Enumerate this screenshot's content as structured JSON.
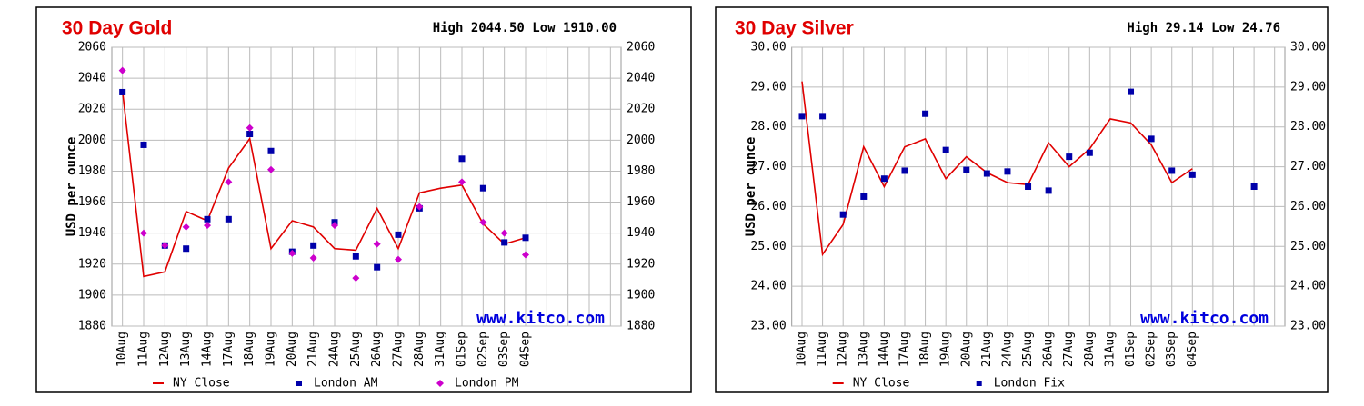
{
  "chart_data": [
    {
      "type": "line",
      "title": "30 Day Gold",
      "subtitle": "High 2044.50 Low 1910.00",
      "y_label": "USD per ounce",
      "watermark": "www.kitco.com",
      "categories": [
        "10Aug",
        "11Aug",
        "12Aug",
        "13Aug",
        "14Aug",
        "17Aug",
        "18Aug",
        "19Aug",
        "20Aug",
        "21Aug",
        "24Aug",
        "25Aug",
        "26Aug",
        "27Aug",
        "28Aug",
        "31Aug",
        "01Sep",
        "02Sep",
        "03Sep",
        "04Sep",
        null,
        null,
        null,
        null
      ],
      "series": [
        {
          "name": "NY Close",
          "color": "#e00000",
          "marker": "line",
          "values": [
            2032,
            1912,
            1915,
            1954,
            1948,
            1982,
            2001,
            1930,
            1948,
            1944,
            1930,
            1929,
            1956,
            1930,
            1966,
            1969,
            1971,
            1946,
            1933,
            1937,
            null,
            null,
            null,
            null
          ]
        },
        {
          "name": "London AM",
          "color": "#0000aa",
          "marker": "square",
          "values": [
            2031,
            1997,
            1932,
            1930,
            1949,
            1949,
            2004,
            1993,
            1928,
            1932,
            1947,
            1925,
            1918,
            1939,
            1956,
            null,
            1988,
            1969,
            1934,
            1937,
            null,
            null,
            null,
            null
          ]
        },
        {
          "name": "London PM",
          "color": "#cc00cc",
          "marker": "diamond",
          "values": [
            2045,
            1940,
            1932,
            1944,
            1945,
            1973,
            2008,
            1981,
            1927,
            1924,
            1945,
            1911,
            1933,
            1923,
            1957,
            null,
            1973,
            1947,
            1940,
            1926,
            null,
            null,
            null,
            null
          ]
        }
      ],
      "ylim": [
        1880,
        2060
      ],
      "yticks": [
        1880,
        1900,
        1920,
        1940,
        1960,
        1980,
        2000,
        2020,
        2040,
        2060
      ],
      "grid": true
    },
    {
      "type": "line",
      "title": "30 Day Silver",
      "subtitle": "High 29.14 Low 24.76",
      "y_label": "USD per ounce",
      "watermark": "www.kitco.com",
      "categories": [
        "10Aug",
        "11Aug",
        "12Aug",
        "13Aug",
        "14Aug",
        "17Aug",
        "18Aug",
        "19Aug",
        "20Aug",
        "21Aug",
        "24Aug",
        "25Aug",
        "26Aug",
        "27Aug",
        "28Aug",
        "31Aug",
        "01Sep",
        "02Sep",
        "03Sep",
        "04Sep",
        null,
        null,
        null,
        null
      ],
      "series": [
        {
          "name": "NY Close",
          "color": "#e00000",
          "marker": "line",
          "values": [
            29.14,
            24.8,
            25.55,
            27.5,
            26.5,
            27.5,
            27.7,
            26.7,
            27.25,
            26.85,
            26.6,
            26.55,
            27.6,
            27.0,
            27.45,
            28.2,
            28.1,
            27.55,
            26.6,
            26.95,
            null,
            null,
            null,
            null
          ]
        },
        {
          "name": "London Fix",
          "color": "#0000aa",
          "marker": "square",
          "values": [
            28.27,
            28.27,
            25.8,
            26.25,
            26.7,
            26.9,
            28.33,
            27.42,
            26.92,
            26.83,
            26.88,
            26.5,
            26.4,
            27.25,
            27.35,
            null,
            28.88,
            27.7,
            26.9,
            26.8,
            null,
            null,
            26.5,
            null
          ]
        }
      ],
      "ylim": [
        23,
        30
      ],
      "yticks": [
        {
          "value": 23,
          "label": "23.00"
        },
        {
          "value": 24,
          "label": "24.00"
        },
        {
          "value": 25,
          "label": "25.00"
        },
        {
          "value": 26,
          "label": "26.00"
        },
        {
          "value": 27,
          "label": "27.00"
        },
        {
          "value": 28,
          "label": "28.00"
        },
        {
          "value": 29,
          "label": "29.00"
        },
        {
          "value": 30,
          "label": "30.00"
        }
      ],
      "grid": true
    }
  ]
}
